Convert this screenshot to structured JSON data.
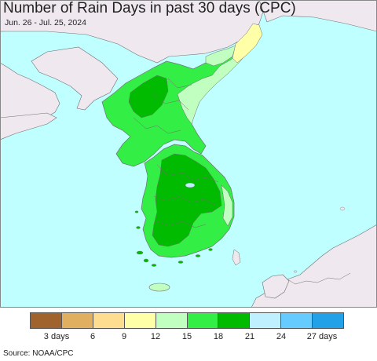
{
  "title": "Number of Rain Days in past 30 days (CPC)",
  "subtitle": "Jun. 26 - Jul. 25, 2024",
  "source": "Source: NOAA/CPC",
  "colors": {
    "sea": "#c0ffff",
    "land_outside": "#efe9ef",
    "border": "#707070"
  },
  "legend": {
    "swatches": [
      {
        "color": "#a0632e"
      },
      {
        "color": "#e0b060"
      },
      {
        "color": "#ffdd90"
      },
      {
        "color": "#ffffa8"
      },
      {
        "color": "#c0ffc0"
      },
      {
        "color": "#33ee44"
      },
      {
        "color": "#00bb00"
      },
      {
        "color": "#bff0ff"
      },
      {
        "color": "#66ccff"
      },
      {
        "color": "#22a0e8"
      }
    ],
    "labels": [
      "3 days",
      "6",
      "9",
      "12",
      "15",
      "18",
      "21",
      "24",
      "27 days"
    ]
  }
}
